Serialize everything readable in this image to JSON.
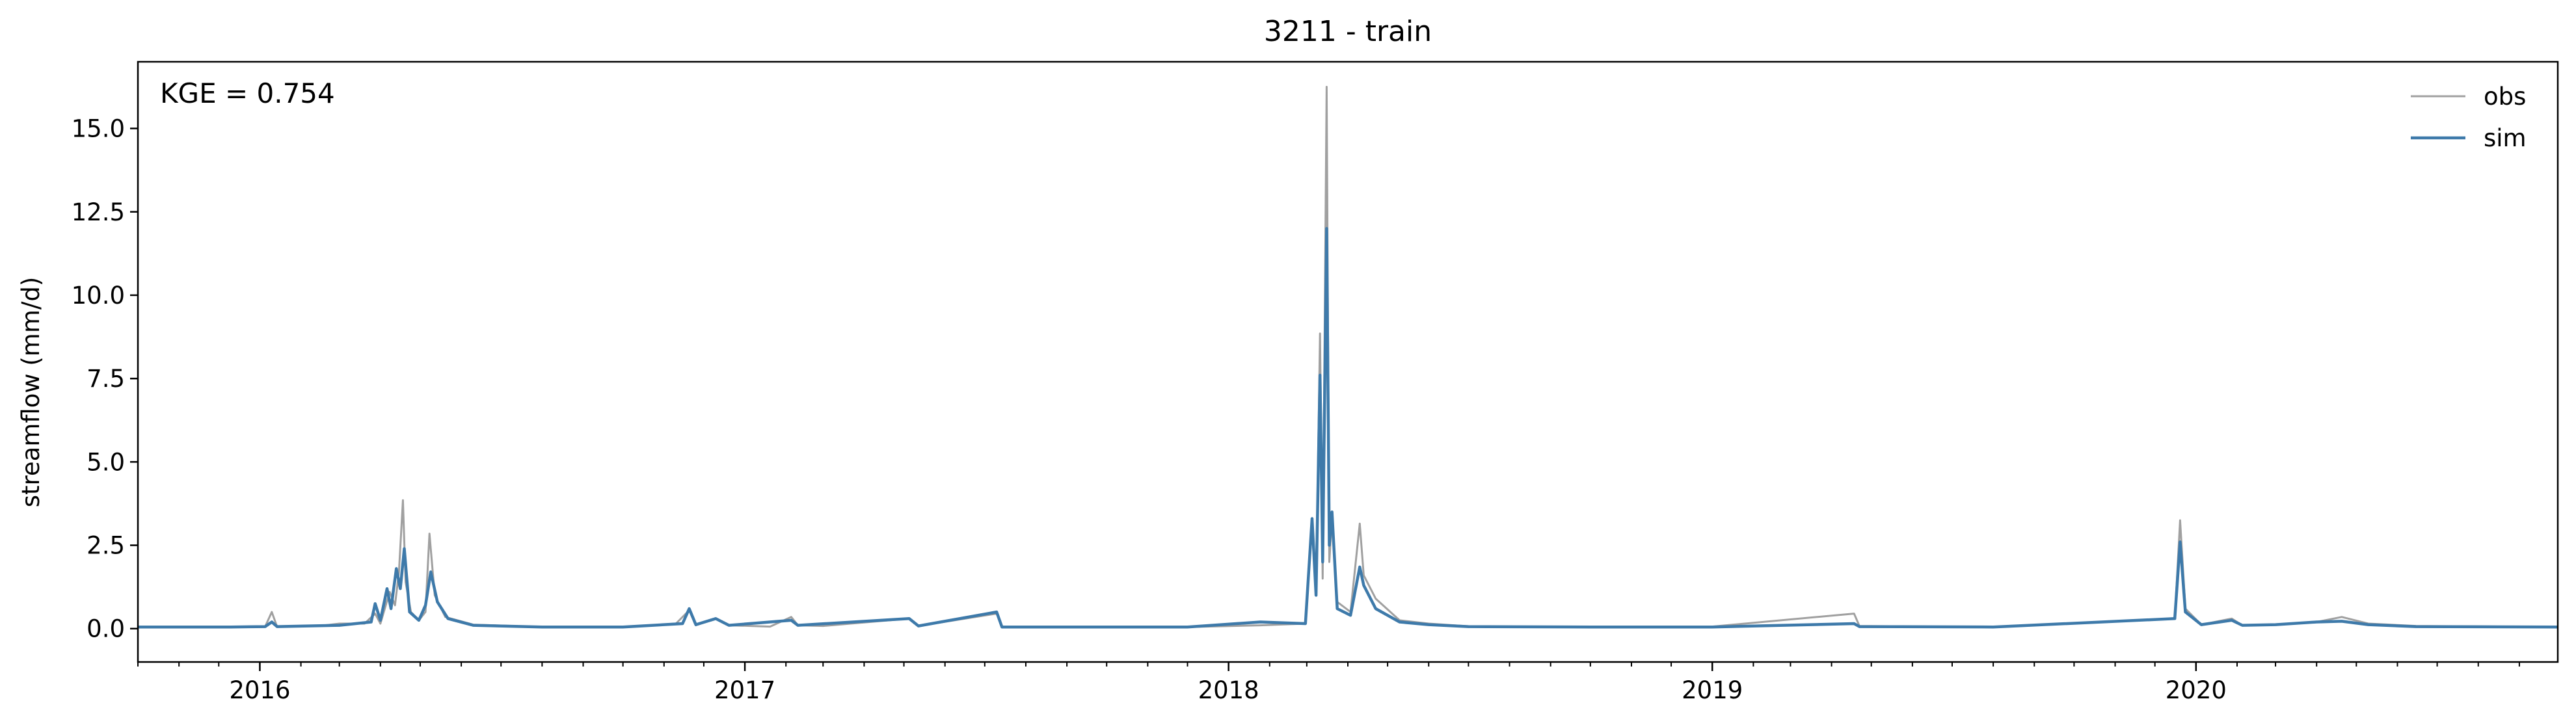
{
  "chart_data": {
    "type": "line",
    "title": "3211 - train",
    "xlabel": "",
    "ylabel": "streamflow (mm/d)",
    "annotation": "KGE = 0.754",
    "xlim": [
      "2015-10-01",
      "2020-09-30"
    ],
    "ylim": [
      -1.0,
      17.0
    ],
    "x_ticks": [
      "2016",
      "2017",
      "2018",
      "2019",
      "2020"
    ],
    "y_ticks": [
      "0.0",
      "2.5",
      "5.0",
      "7.5",
      "10.0",
      "12.5",
      "15.0"
    ],
    "legend_position": "top-right",
    "grid": false,
    "series": [
      {
        "name": "obs",
        "color": "#a0a0a0",
        "points": [
          [
            "2015-10-01",
            0.04
          ],
          [
            "2015-10-20",
            0.05
          ],
          [
            "2015-11-10",
            0.06
          ],
          [
            "2015-12-10",
            0.05
          ],
          [
            "2016-01-05",
            0.06
          ],
          [
            "2016-01-10",
            0.5
          ],
          [
            "2016-01-14",
            0.06
          ],
          [
            "2016-02-15",
            0.08
          ],
          [
            "2016-03-01",
            0.15
          ],
          [
            "2016-03-20",
            0.15
          ],
          [
            "2016-03-28",
            0.45
          ],
          [
            "2016-04-01",
            0.15
          ],
          [
            "2016-04-08",
            1.1
          ],
          [
            "2016-04-12",
            0.7
          ],
          [
            "2016-04-15",
            1.7
          ],
          [
            "2016-04-18",
            3.85
          ],
          [
            "2016-04-20",
            1.4
          ],
          [
            "2016-04-24",
            0.5
          ],
          [
            "2016-04-30",
            0.25
          ],
          [
            "2016-05-05",
            0.5
          ],
          [
            "2016-05-08",
            2.85
          ],
          [
            "2016-05-12",
            1.0
          ],
          [
            "2016-05-20",
            0.35
          ],
          [
            "2016-06-10",
            0.12
          ],
          [
            "2016-08-01",
            0.05
          ],
          [
            "2016-10-01",
            0.05
          ],
          [
            "2016-11-10",
            0.15
          ],
          [
            "2016-11-20",
            0.55
          ],
          [
            "2016-11-25",
            0.1
          ],
          [
            "2016-12-10",
            0.3
          ],
          [
            "2016-12-20",
            0.1
          ],
          [
            "2017-01-20",
            0.06
          ],
          [
            "2017-02-05",
            0.35
          ],
          [
            "2017-02-10",
            0.1
          ],
          [
            "2017-03-01",
            0.08
          ],
          [
            "2017-05-05",
            0.3
          ],
          [
            "2017-05-12",
            0.08
          ],
          [
            "2017-07-10",
            0.45
          ],
          [
            "2017-07-14",
            0.05
          ],
          [
            "2017-09-01",
            0.05
          ],
          [
            "2017-12-01",
            0.05
          ],
          [
            "2018-01-25",
            0.1
          ],
          [
            "2018-02-28",
            0.15
          ],
          [
            "2018-03-05",
            3.1
          ],
          [
            "2018-03-08",
            1.0
          ],
          [
            "2018-03-11",
            8.85
          ],
          [
            "2018-03-13",
            1.5
          ],
          [
            "2018-03-16",
            16.25
          ],
          [
            "2018-03-18",
            2.0
          ],
          [
            "2018-03-20",
            3.3
          ],
          [
            "2018-03-24",
            0.8
          ],
          [
            "2018-04-03",
            0.5
          ],
          [
            "2018-04-10",
            3.15
          ],
          [
            "2018-04-13",
            1.6
          ],
          [
            "2018-04-22",
            0.9
          ],
          [
            "2018-05-10",
            0.25
          ],
          [
            "2018-06-01",
            0.15
          ],
          [
            "2018-07-01",
            0.07
          ],
          [
            "2018-10-01",
            0.05
          ],
          [
            "2019-01-01",
            0.06
          ],
          [
            "2019-04-18",
            0.45
          ],
          [
            "2019-04-22",
            0.08
          ],
          [
            "2019-08-01",
            0.05
          ],
          [
            "2019-12-16",
            0.3
          ],
          [
            "2019-12-20",
            3.25
          ],
          [
            "2019-12-24",
            0.6
          ],
          [
            "2020-01-05",
            0.12
          ],
          [
            "2020-01-28",
            0.3
          ],
          [
            "2020-02-05",
            0.1
          ],
          [
            "2020-03-01",
            0.12
          ],
          [
            "2020-04-01",
            0.2
          ],
          [
            "2020-04-20",
            0.35
          ],
          [
            "2020-05-10",
            0.15
          ],
          [
            "2020-06-15",
            0.08
          ],
          [
            "2020-09-30",
            0.05
          ]
        ]
      },
      {
        "name": "sim",
        "color": "#3e7aaa",
        "points": [
          [
            "2015-10-01",
            0.05
          ],
          [
            "2015-12-10",
            0.05
          ],
          [
            "2016-01-05",
            0.06
          ],
          [
            "2016-01-10",
            0.2
          ],
          [
            "2016-01-14",
            0.06
          ],
          [
            "2016-03-01",
            0.1
          ],
          [
            "2016-03-25",
            0.2
          ],
          [
            "2016-03-28",
            0.75
          ],
          [
            "2016-04-01",
            0.25
          ],
          [
            "2016-04-06",
            1.2
          ],
          [
            "2016-04-09",
            0.6
          ],
          [
            "2016-04-13",
            1.8
          ],
          [
            "2016-04-16",
            1.2
          ],
          [
            "2016-04-19",
            2.4
          ],
          [
            "2016-04-23",
            0.5
          ],
          [
            "2016-04-30",
            0.25
          ],
          [
            "2016-05-05",
            0.7
          ],
          [
            "2016-05-09",
            1.7
          ],
          [
            "2016-05-14",
            0.8
          ],
          [
            "2016-05-22",
            0.3
          ],
          [
            "2016-06-10",
            0.1
          ],
          [
            "2016-08-01",
            0.05
          ],
          [
            "2016-10-01",
            0.05
          ],
          [
            "2016-11-15",
            0.15
          ],
          [
            "2016-11-20",
            0.6
          ],
          [
            "2016-11-25",
            0.12
          ],
          [
            "2016-12-10",
            0.3
          ],
          [
            "2016-12-20",
            0.1
          ],
          [
            "2017-02-05",
            0.25
          ],
          [
            "2017-02-10",
            0.1
          ],
          [
            "2017-05-05",
            0.3
          ],
          [
            "2017-05-12",
            0.08
          ],
          [
            "2017-07-10",
            0.5
          ],
          [
            "2017-07-14",
            0.05
          ],
          [
            "2017-09-01",
            0.05
          ],
          [
            "2017-12-01",
            0.05
          ],
          [
            "2018-01-25",
            0.2
          ],
          [
            "2018-02-28",
            0.15
          ],
          [
            "2018-03-05",
            3.3
          ],
          [
            "2018-03-08",
            1.0
          ],
          [
            "2018-03-11",
            7.6
          ],
          [
            "2018-03-13",
            2.0
          ],
          [
            "2018-03-16",
            12.0
          ],
          [
            "2018-03-18",
            2.5
          ],
          [
            "2018-03-20",
            3.5
          ],
          [
            "2018-03-24",
            0.6
          ],
          [
            "2018-04-03",
            0.4
          ],
          [
            "2018-04-10",
            1.85
          ],
          [
            "2018-04-13",
            1.3
          ],
          [
            "2018-04-22",
            0.6
          ],
          [
            "2018-05-10",
            0.2
          ],
          [
            "2018-06-01",
            0.12
          ],
          [
            "2018-07-01",
            0.06
          ],
          [
            "2018-10-01",
            0.05
          ],
          [
            "2019-01-01",
            0.05
          ],
          [
            "2019-04-18",
            0.15
          ],
          [
            "2019-04-22",
            0.06
          ],
          [
            "2019-08-01",
            0.05
          ],
          [
            "2019-12-16",
            0.3
          ],
          [
            "2019-12-20",
            2.6
          ],
          [
            "2019-12-24",
            0.5
          ],
          [
            "2020-01-05",
            0.12
          ],
          [
            "2020-01-28",
            0.25
          ],
          [
            "2020-02-05",
            0.1
          ],
          [
            "2020-03-01",
            0.12
          ],
          [
            "2020-04-01",
            0.2
          ],
          [
            "2020-04-20",
            0.22
          ],
          [
            "2020-05-10",
            0.12
          ],
          [
            "2020-06-15",
            0.06
          ],
          [
            "2020-09-30",
            0.05
          ]
        ]
      }
    ]
  }
}
